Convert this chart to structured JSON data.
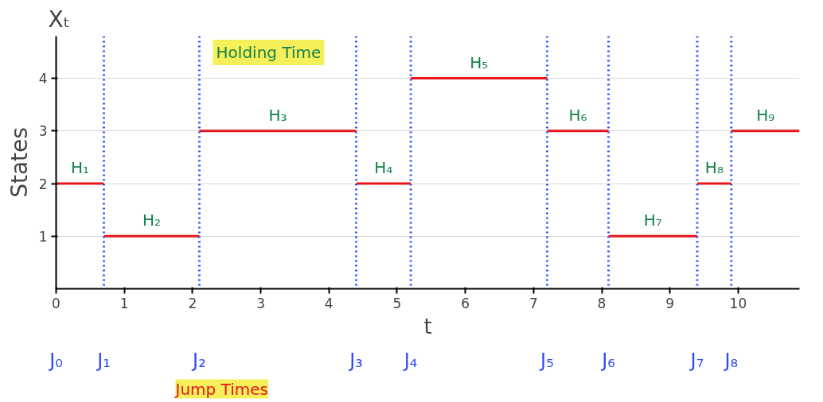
{
  "chart_data": {
    "type": "line",
    "xlabel": "t",
    "ylabel": "States",
    "xlim": [
      0,
      10.9
    ],
    "ylim": [
      0,
      4.8
    ],
    "xticks": [
      0,
      1,
      2,
      3,
      4,
      5,
      6,
      7,
      8,
      9,
      10
    ],
    "yticks": [
      1,
      2,
      3,
      4
    ],
    "grid": "y",
    "marker": "none",
    "line_style": "solid",
    "series": [
      {
        "color": "#e8161b",
        "x": [
          0,
          0.7
        ],
        "values": [
          2,
          2
        ]
      },
      {
        "color": "#e8161b",
        "x": [
          0.7,
          2.1
        ],
        "values": [
          1,
          1
        ]
      },
      {
        "color": "#e8161b",
        "x": [
          2.1,
          4.4
        ],
        "values": [
          3,
          3
        ]
      },
      {
        "color": "#e8161b",
        "x": [
          4.4,
          5.2
        ],
        "values": [
          2,
          2
        ]
      },
      {
        "color": "#e8161b",
        "x": [
          5.2,
          7.2
        ],
        "values": [
          4,
          4
        ]
      },
      {
        "color": "#e8161b",
        "x": [
          7.2,
          8.1
        ],
        "values": [
          3,
          3
        ]
      },
      {
        "color": "#e8161b",
        "x": [
          8.1,
          9.4
        ],
        "values": [
          1,
          1
        ]
      },
      {
        "color": "#e8161b",
        "x": [
          9.4,
          9.9
        ],
        "values": [
          2,
          2
        ]
      },
      {
        "color": "#e8161b",
        "x": [
          9.9,
          10.9
        ],
        "values": [
          3,
          3
        ]
      }
    ],
    "ref_lines": [
      {
        "axis": "x",
        "value": 0.7,
        "label": "J₁",
        "color": "#2f4cf5",
        "line_style": "dotted"
      },
      {
        "axis": "x",
        "value": 2.1,
        "label": "J₂",
        "color": "#2f4cf5",
        "line_style": "dotted"
      },
      {
        "axis": "x",
        "value": 4.4,
        "label": "J₃",
        "color": "#2f4cf5",
        "line_style": "dotted"
      },
      {
        "axis": "x",
        "value": 5.2,
        "label": "J₄",
        "color": "#2f4cf5",
        "line_style": "dotted"
      },
      {
        "axis": "x",
        "value": 7.2,
        "label": "J₅",
        "color": "#2f4cf5",
        "line_style": "dotted"
      },
      {
        "axis": "x",
        "value": 8.1,
        "label": "J₆",
        "color": "#2f4cf5",
        "line_style": "dotted"
      },
      {
        "axis": "x",
        "value": 9.4,
        "label": "J₇",
        "color": "#2f4cf5",
        "line_style": "dotted"
      },
      {
        "axis": "x",
        "value": 9.9,
        "label": "J₈",
        "color": "#2f4cf5",
        "line_style": "dotted"
      }
    ],
    "annotations": [
      "Xₜ",
      "Holding Time",
      "Jump Times",
      "J₀",
      {
        "text": "H₁",
        "x": 0.35,
        "y": 2
      },
      {
        "text": "H₂",
        "x": 1.4,
        "y": 1
      },
      {
        "text": "H₃",
        "x": 3.25,
        "y": 3
      },
      {
        "text": "H₄",
        "x": 4.8,
        "y": 2
      },
      {
        "text": "H₅",
        "x": 6.2,
        "y": 4
      },
      {
        "text": "H₆",
        "x": 7.65,
        "y": 3
      },
      {
        "text": "H₇",
        "x": 8.75,
        "y": 1
      },
      {
        "text": "H₈",
        "x": 9.65,
        "y": 2
      },
      {
        "text": "H₉",
        "x": 10.4,
        "y": 3
      }
    ]
  }
}
